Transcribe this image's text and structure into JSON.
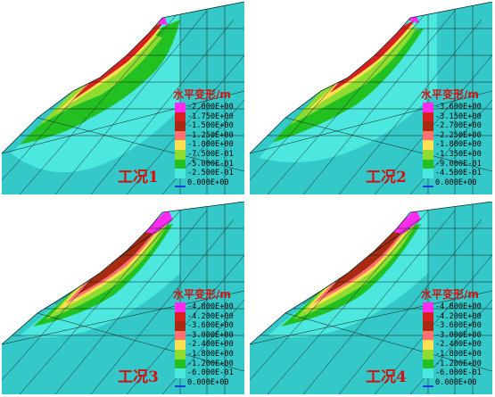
{
  "legend_title": "水平变形/m",
  "color_ramp": [
    "#ff2cf0",
    "#d92020",
    "#a82a10",
    "#ff7070",
    "#ffe050",
    "#8fdc30",
    "#22c020",
    "#4ce8e0",
    "#34c8c8"
  ],
  "panels": [
    {
      "label": "工况1",
      "levels": [
        "-2.000E+00",
        "-1.750E+00",
        "-1.500E+00",
        "-1.250E+00",
        "-1.000E+00",
        "-7.500E-01",
        "-5.000E-01",
        "-2.500E-01",
        "0.000E+00"
      ]
    },
    {
      "label": "工况2",
      "levels": [
        "-3.600E+00",
        "-3.150E+00",
        "-2.700E+00",
        "-2.250E+00",
        "-1.800E+00",
        "-1.350E+00",
        "-9.000E-01",
        "-4.500E-01",
        "0.000E+00"
      ]
    },
    {
      "label": "工况3",
      "levels": [
        "-4.800E+00",
        "-4.200E+00",
        "-3.600E+00",
        "-3.000E+00",
        "-2.400E+00",
        "-1.800E+00",
        "-1.200E+00",
        "-6.000E-01",
        "0.000E+00"
      ]
    },
    {
      "label": "工况4",
      "levels": [
        "-4.800E+00",
        "-4.200E+00",
        "-3.600E+00",
        "-3.000E+00",
        "-2.400E+00",
        "-1.800E+00",
        "-1.200E+00",
        "-6.000E-01",
        "0.000E+00"
      ]
    }
  ]
}
